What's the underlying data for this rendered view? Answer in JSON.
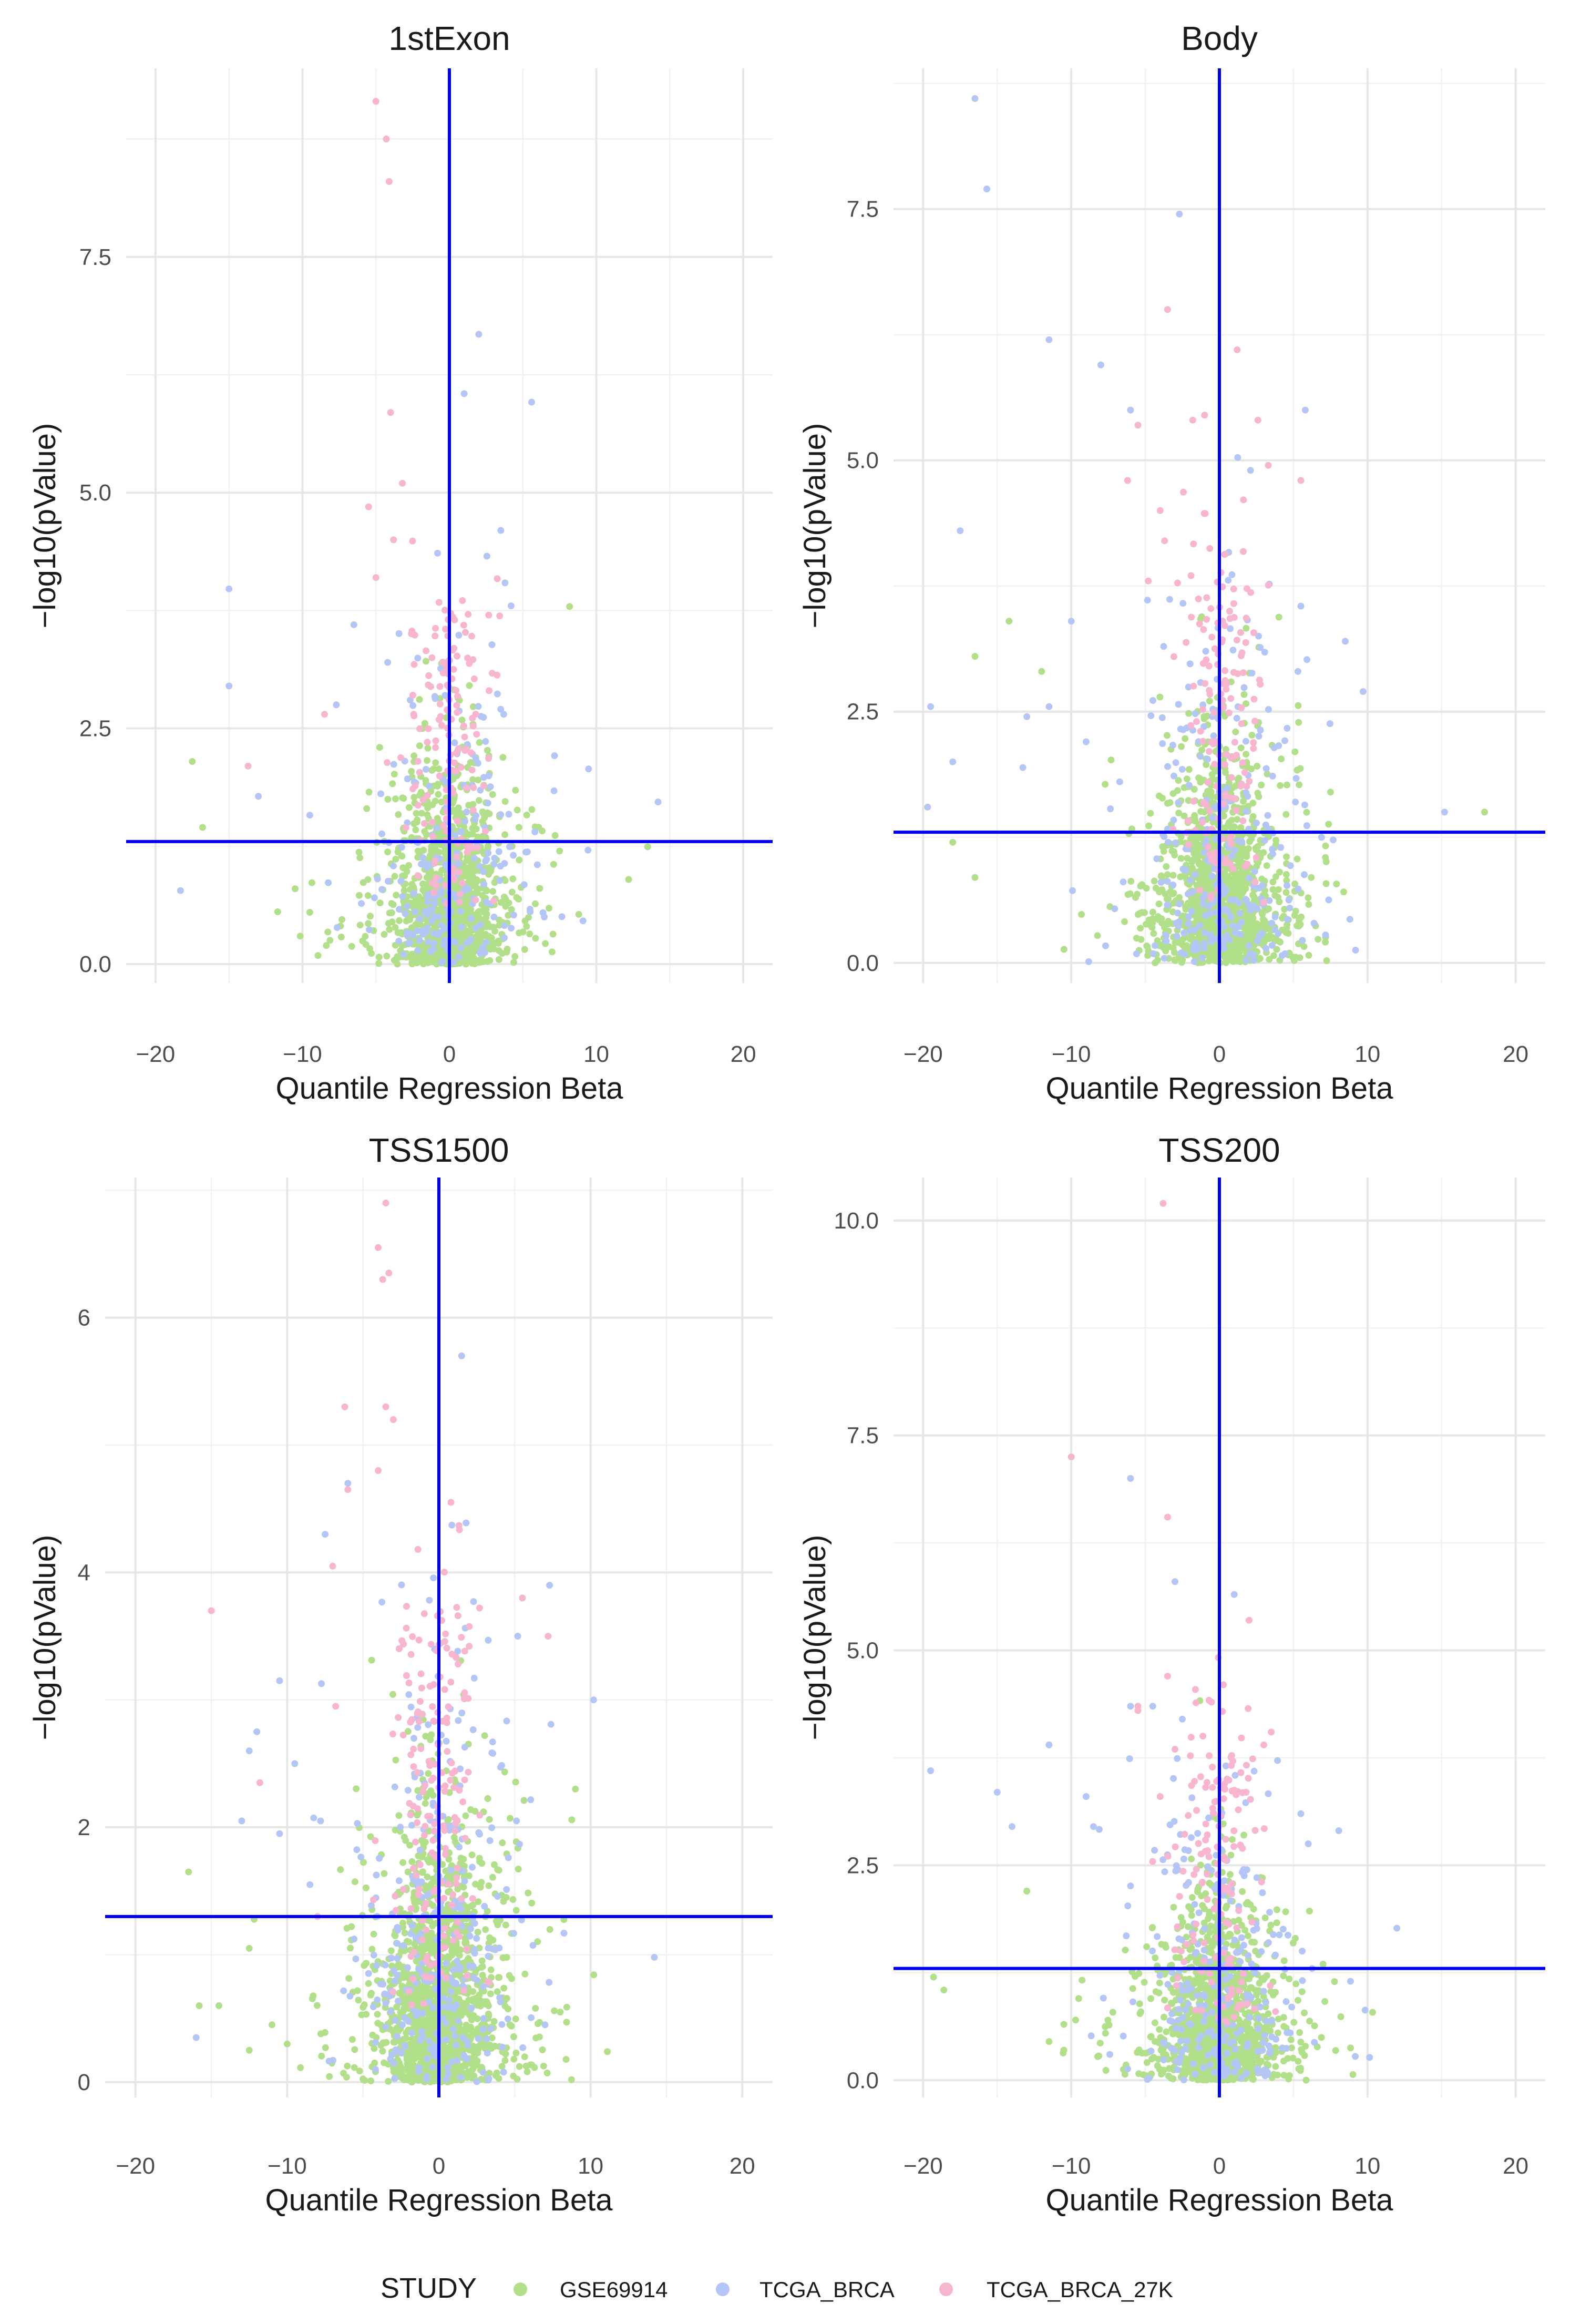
{
  "chart_data": [
    {
      "type": "scatter",
      "title": "1stExon",
      "xlabel": "Quantile Regression Beta",
      "ylabel": "−log10(pValue)",
      "xlim": [
        -22,
        22
      ],
      "ylim": [
        -0.2,
        9.5
      ],
      "x_ticks": [
        -20,
        -10,
        0,
        10,
        20
      ],
      "x_tick_labels": [
        "−20",
        "−10",
        "0",
        "10",
        "20"
      ],
      "y_ticks": [
        0,
        2.5,
        5,
        7.5
      ],
      "y_tick_labels": [
        "0.0",
        "2.5",
        "5.0",
        "7.5"
      ],
      "hline": 1.3,
      "vline": 0,
      "seed": 11,
      "counts": {
        "GSE69914": 1300,
        "TCGA_BRCA": 220,
        "TCGA_BRCA_27K": 150
      },
      "highlights": {
        "GSE69914": [
          [
            -17.5,
            2.15
          ],
          [
            -16.8,
            1.45
          ],
          [
            -10.5,
            0.8
          ],
          [
            -9.5,
            0.55
          ],
          [
            7.5,
            1.2
          ],
          [
            2.3,
            1.6
          ]
        ],
        "TCGA_BRCA": [
          [
            -18.3,
            0.78
          ],
          [
            -15,
            3.98
          ],
          [
            -15,
            2.95
          ],
          [
            -13,
            1.78
          ],
          [
            14.2,
            1.72
          ],
          [
            5.6,
            5.96
          ],
          [
            2,
            6.68
          ],
          [
            1,
            6.05
          ],
          [
            3.5,
            4.6
          ],
          [
            -6.5,
            3.6
          ],
          [
            4.2,
            3.8
          ],
          [
            -9.5,
            1.58
          ],
          [
            -4.2,
            3.2
          ],
          [
            -7.7,
            2.75
          ],
          [
            3.7,
            2.65
          ]
        ],
        "TCGA_BRCA_27K": [
          [
            -5,
            9.15
          ],
          [
            -4.3,
            8.75
          ],
          [
            -4.1,
            8.3
          ],
          [
            -4,
            5.85
          ],
          [
            -5.5,
            4.85
          ],
          [
            -3.8,
            4.5
          ],
          [
            -13.7,
            2.1
          ],
          [
            -8.5,
            2.65
          ],
          [
            2.7,
            2.9
          ],
          [
            -3.2,
            5.1
          ],
          [
            -5,
            4.1
          ]
        ]
      }
    },
    {
      "type": "scatter",
      "title": "Body",
      "xlabel": "Quantile Regression Beta",
      "ylabel": "−log10(pValue)",
      "xlim": [
        -22,
        22
      ],
      "ylim": [
        -0.2,
        8.9
      ],
      "x_ticks": [
        -20,
        -10,
        0,
        10,
        20
      ],
      "x_tick_labels": [
        "−20",
        "−10",
        "0",
        "10",
        "20"
      ],
      "y_ticks": [
        0,
        2.5,
        5,
        7.5
      ],
      "y_tick_labels": [
        "0.0",
        "2.5",
        "5.0",
        "7.5"
      ],
      "hline": 1.3,
      "vline": 0,
      "seed": 23,
      "counts": {
        "GSE69914": 1500,
        "TCGA_BRCA": 260,
        "TCGA_BRCA_27K": 150
      },
      "highlights": {
        "GSE69914": [
          [
            17.9,
            1.5
          ],
          [
            -16.5,
            3.05
          ],
          [
            -14.2,
            3.4
          ],
          [
            7.5,
            1.7
          ],
          [
            -16.5,
            0.85
          ],
          [
            -12,
            2.9
          ],
          [
            -18,
            1.2
          ],
          [
            6.2,
            0.85
          ]
        ],
        "TCGA_BRCA": [
          [
            -16.5,
            8.6
          ],
          [
            -15.7,
            7.7
          ],
          [
            -2.7,
            7.45
          ],
          [
            -11.5,
            6.2
          ],
          [
            -8,
            5.95
          ],
          [
            -17.5,
            4.3
          ],
          [
            -19.5,
            2.55
          ],
          [
            -19.7,
            1.55
          ],
          [
            -13,
            2.45
          ],
          [
            15.2,
            1.5
          ],
          [
            8.5,
            3.2
          ],
          [
            9.7,
            2.7
          ],
          [
            5.8,
            5.5
          ],
          [
            5.5,
            3.55
          ],
          [
            -10,
            3.4
          ],
          [
            5.3,
            2.9
          ],
          [
            -18,
            2
          ],
          [
            2.1,
            4.9
          ],
          [
            -11.5,
            2.55
          ],
          [
            -9,
            2.2
          ],
          [
            -6,
            5.5
          ]
        ],
        "TCGA_BRCA_27K": [
          [
            -3.5,
            6.5
          ],
          [
            1.2,
            6.1
          ],
          [
            -1.8,
            5.4
          ],
          [
            2.6,
            5.4
          ],
          [
            -6.2,
            4.8
          ],
          [
            5.5,
            4.8
          ],
          [
            3.3,
            4.95
          ],
          [
            -4,
            4.5
          ],
          [
            -3.7,
            4.2
          ],
          [
            -1,
            5.45
          ],
          [
            -4.8,
            3.8
          ],
          [
            -5.5,
            5.35
          ]
        ]
      }
    },
    {
      "type": "scatter",
      "title": "TSS1500",
      "xlabel": "Quantile Regression Beta",
      "ylabel": "−log10(pValue)",
      "xlim": [
        -22,
        22
      ],
      "ylim": [
        -0.12,
        7.1
      ],
      "x_ticks": [
        -20,
        -10,
        0,
        10,
        20
      ],
      "x_tick_labels": [
        "−20",
        "−10",
        "0",
        "10",
        "20"
      ],
      "y_ticks": [
        0,
        2,
        4,
        6
      ],
      "y_tick_labels": [
        "0",
        "2",
        "4",
        "6"
      ],
      "hline": 1.3,
      "vline": 0,
      "seed": 37,
      "counts": {
        "GSE69914": 1600,
        "TCGA_BRCA": 300,
        "TCGA_BRCA_27K": 180
      },
      "highlights": {
        "GSE69914": [
          [
            -16.5,
            1.65
          ],
          [
            -15.8,
            0.6
          ],
          [
            -12.5,
            0.25
          ],
          [
            9,
            2.3
          ],
          [
            8,
            0.55
          ],
          [
            -14.5,
            0.6
          ],
          [
            -11,
            0.45
          ],
          [
            -12.5,
            1.05
          ],
          [
            -10,
            0.3
          ]
        ],
        "TCGA_BRCA": [
          [
            1.5,
            5.7
          ],
          [
            10.2,
            3
          ],
          [
            7.3,
            3.9
          ],
          [
            14.2,
            0.98
          ],
          [
            -10.5,
            3.15
          ],
          [
            -7.5,
            4.3
          ],
          [
            -6,
            4.7
          ],
          [
            -16,
            0.35
          ],
          [
            -10.5,
            1.95
          ],
          [
            -12,
            2.75
          ],
          [
            -12.5,
            2.6
          ],
          [
            -9.5,
            2.5
          ],
          [
            7,
            0.45
          ],
          [
            5.2,
            3.5
          ],
          [
            -8.5,
            1.55
          ],
          [
            -13,
            2.05
          ]
        ],
        "TCGA_BRCA_27K": [
          [
            -3.5,
            6.9
          ],
          [
            -4,
            6.55
          ],
          [
            -3.7,
            6.3
          ],
          [
            -3.3,
            6.35
          ],
          [
            -15,
            3.7
          ],
          [
            -6.2,
            5.3
          ],
          [
            -7,
            4.05
          ],
          [
            -3.5,
            5.3
          ],
          [
            -3,
            5.2
          ],
          [
            -6,
            4.65
          ],
          [
            -4,
            4.8
          ],
          [
            -8,
            1.3
          ],
          [
            -11.8,
            2.35
          ],
          [
            5.5,
            3.8
          ],
          [
            7.2,
            3.5
          ],
          [
            -6.8,
            2.95
          ]
        ]
      }
    },
    {
      "type": "scatter",
      "title": "TSS200",
      "xlabel": "Quantile Regression Beta",
      "ylabel": "−log10(pValue)",
      "xlim": [
        -22,
        22
      ],
      "ylim": [
        -0.2,
        10.5
      ],
      "x_ticks": [
        -20,
        -10,
        0,
        10,
        20
      ],
      "x_tick_labels": [
        "−20",
        "−10",
        "0",
        "10",
        "20"
      ],
      "y_ticks": [
        0,
        2.5,
        5,
        7.5,
        10
      ],
      "y_tick_labels": [
        "0.0",
        "2.5",
        "5.0",
        "7.5",
        "10.0"
      ],
      "hline": 1.3,
      "vline": 0,
      "seed": 53,
      "counts": {
        "GSE69914": 1500,
        "TCGA_BRCA": 250,
        "TCGA_BRCA_27K": 150
      },
      "highlights": {
        "GSE69914": [
          [
            -18.6,
            1.05
          ],
          [
            -19.3,
            1.2
          ],
          [
            -13,
            2.2
          ],
          [
            7,
            1.35
          ],
          [
            -11.5,
            0.45
          ],
          [
            -10.5,
            0.35
          ],
          [
            -9.5,
            0.95
          ],
          [
            -10.5,
            0.65
          ]
        ],
        "TCGA_BRCA": [
          [
            -10,
            7.25
          ],
          [
            -6,
            7
          ],
          [
            -3,
            5.8
          ],
          [
            1,
            5.65
          ],
          [
            -19.5,
            3.6
          ],
          [
            -15,
            3.35
          ],
          [
            -11.5,
            3.9
          ],
          [
            -14,
            2.95
          ],
          [
            -6,
            4.35
          ],
          [
            -2.5,
            4.2
          ],
          [
            5.5,
            3.1
          ],
          [
            6,
            2.75
          ],
          [
            -9,
            3.3
          ],
          [
            -4.5,
            4.35
          ],
          [
            -8.5,
            2.95
          ]
        ],
        "TCGA_BRCA_27K": [
          [
            -3.8,
            10.2
          ],
          [
            -3.5,
            6.55
          ],
          [
            2,
            5.35
          ],
          [
            -3.5,
            4.7
          ],
          [
            -5.5,
            4.35
          ],
          [
            3.5,
            4.05
          ],
          [
            -4,
            3.3
          ],
          [
            3,
            3.9
          ],
          [
            -10,
            7.25
          ],
          [
            -5.5,
            4.3
          ],
          [
            -3,
            3.85
          ]
        ]
      }
    }
  ],
  "legend": {
    "title": "STUDY",
    "items": [
      {
        "label": "GSE69914",
        "color": "#b2df8a"
      },
      {
        "label": "TCGA_BRCA",
        "color": "#b3c6f5"
      },
      {
        "label": "TCGA_BRCA_27K",
        "color": "#f7b5cf"
      }
    ]
  },
  "colors": {
    "reference_line": "#0000ee",
    "grid": "#e6e6e6"
  }
}
